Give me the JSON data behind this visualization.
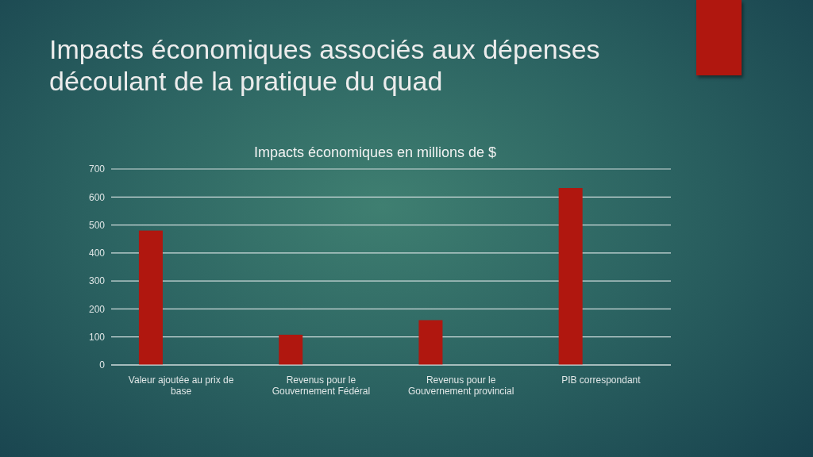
{
  "chart_data": {
    "type": "bar",
    "title": "Impacts économiques associés aux dépenses découlant de la pratique du quad",
    "subtitle": "Impacts économiques en millions de $",
    "categories": [
      "Valeur ajoutée au prix de base",
      "Revenus pour le Gouvernement Fédéral",
      "Revenus pour le Gouvernement provincial",
      "PIB correspondant"
    ],
    "values": [
      480,
      108,
      160,
      632
    ],
    "color": "#b0170f",
    "ylim": [
      0,
      700
    ],
    "yticks": [
      0,
      100,
      200,
      300,
      400,
      500,
      600,
      700
    ],
    "grid": "y"
  }
}
